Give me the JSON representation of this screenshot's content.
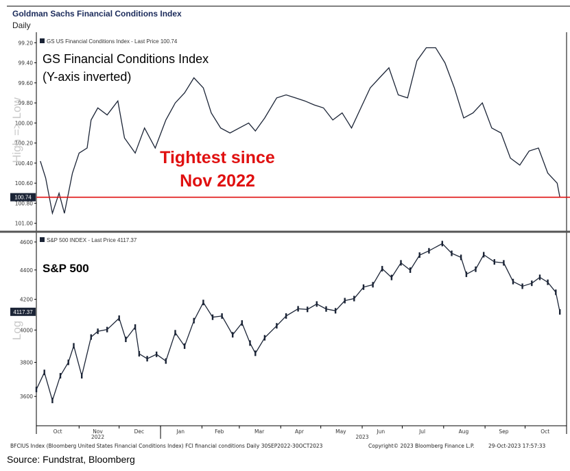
{
  "header": {
    "title": "Goldman Sachs Financial Conditions Index",
    "subtitle": "Daily"
  },
  "footer": {
    "left": "BFCIUS Index (Bloomberg United States Financial Conditions Index) FCI financial conditions  Daily 30SEP2022-30OCT2023",
    "middle": "Copyright© 2023 Bloomberg Finance L.P.",
    "right": "29-Oct-2023 17:57:33"
  },
  "source": "Source: Fundstrat, Bloomberg",
  "colors": {
    "line": "#1b2436",
    "accent": "#e01010",
    "frame": "#000000"
  },
  "chart_data": [
    {
      "type": "line",
      "legend": "GS US Financial Conditions Index - Last Price 100.74",
      "title": "GS Financial Conditions Index",
      "subtitle": "(Y-axis inverted)",
      "ylabel": "High => Low",
      "annotation": [
        "Tightest since",
        "Nov 2022"
      ],
      "last_value_label": "100.74",
      "last_value": 100.74,
      "y_inverted": true,
      "ylim": [
        99.15,
        101.05
      ],
      "yticks": [
        "99.20",
        "99.40",
        "99.60",
        "99.80",
        "100.00",
        "100.20",
        "100.40",
        "100.60",
        "100.80",
        "101.00"
      ],
      "ytick_values": [
        99.2,
        99.4,
        99.6,
        99.8,
        100.0,
        100.2,
        100.4,
        100.6,
        100.8,
        101.0
      ],
      "xlim": [
        "2022-09-30",
        "2023-10-30"
      ],
      "series": [
        {
          "x": [
            "2022-10-03",
            "2022-10-07",
            "2022-10-12",
            "2022-10-17",
            "2022-10-21",
            "2022-10-27",
            "2022-11-01",
            "2022-11-07",
            "2022-11-10",
            "2022-11-15",
            "2022-11-22",
            "2022-11-30",
            "2022-12-05",
            "2022-12-13",
            "2022-12-20",
            "2022-12-28",
            "2023-01-05",
            "2023-01-12",
            "2023-01-19",
            "2023-01-26",
            "2023-02-02",
            "2023-02-08",
            "2023-02-15",
            "2023-02-22",
            "2023-03-01",
            "2023-03-08",
            "2023-03-13",
            "2023-03-20",
            "2023-03-29",
            "2023-04-05",
            "2023-04-12",
            "2023-04-19",
            "2023-04-26",
            "2023-05-03",
            "2023-05-10",
            "2023-05-17",
            "2023-05-24",
            "2023-05-31",
            "2023-06-07",
            "2023-06-14",
            "2023-06-21",
            "2023-06-28",
            "2023-07-05",
            "2023-07-12",
            "2023-07-19",
            "2023-07-26",
            "2023-08-02",
            "2023-08-09",
            "2023-08-16",
            "2023-08-23",
            "2023-08-30",
            "2023-09-06",
            "2023-09-13",
            "2023-09-20",
            "2023-09-27",
            "2023-10-04",
            "2023-10-11",
            "2023-10-18",
            "2023-10-25",
            "2023-10-27"
          ],
          "values": [
            100.38,
            100.55,
            100.9,
            100.7,
            100.9,
            100.5,
            100.3,
            100.25,
            99.97,
            99.85,
            99.92,
            99.78,
            100.15,
            100.3,
            100.05,
            100.25,
            99.97,
            99.8,
            99.7,
            99.55,
            99.65,
            99.9,
            100.05,
            100.1,
            100.05,
            100.0,
            100.08,
            99.95,
            99.75,
            99.72,
            99.75,
            99.78,
            99.82,
            99.85,
            99.97,
            99.9,
            100.05,
            99.85,
            99.65,
            99.55,
            99.45,
            99.72,
            99.75,
            99.38,
            99.25,
            99.25,
            99.4,
            99.65,
            99.95,
            99.9,
            99.8,
            100.05,
            100.1,
            100.35,
            100.42,
            100.28,
            100.25,
            100.5,
            100.6,
            100.74
          ]
        }
      ]
    },
    {
      "type": "line",
      "legend": "S&P 500 INDEX - Last Price 4117.37",
      "title": "S&P 500",
      "ylabel": "Log",
      "last_value_label": "4117.37",
      "last_value": 4117.37,
      "ylim": [
        3440,
        4650
      ],
      "yticks": [
        "3600",
        "3800",
        "4000",
        "4200",
        "4400",
        "4600"
      ],
      "ytick_values": [
        3600,
        3800,
        4000,
        4200,
        4400,
        4600
      ],
      "xlim": [
        "2022-09-30",
        "2023-10-30"
      ],
      "series": [
        {
          "x": [
            "2022-09-30",
            "2022-10-06",
            "2022-10-12",
            "2022-10-18",
            "2022-10-24",
            "2022-10-28",
            "2022-11-03",
            "2022-11-10",
            "2022-11-15",
            "2022-11-22",
            "2022-12-01",
            "2022-12-06",
            "2022-12-13",
            "2022-12-16",
            "2022-12-22",
            "2022-12-29",
            "2023-01-05",
            "2023-01-12",
            "2023-01-19",
            "2023-01-26",
            "2023-02-02",
            "2023-02-09",
            "2023-02-16",
            "2023-02-24",
            "2023-03-03",
            "2023-03-09",
            "2023-03-13",
            "2023-03-20",
            "2023-03-29",
            "2023-04-05",
            "2023-04-14",
            "2023-04-21",
            "2023-04-28",
            "2023-05-05",
            "2023-05-12",
            "2023-05-19",
            "2023-05-26",
            "2023-06-02",
            "2023-06-09",
            "2023-06-16",
            "2023-06-23",
            "2023-06-30",
            "2023-07-07",
            "2023-07-14",
            "2023-07-21",
            "2023-07-31",
            "2023-08-07",
            "2023-08-14",
            "2023-08-18",
            "2023-08-25",
            "2023-08-31",
            "2023-09-08",
            "2023-09-15",
            "2023-09-22",
            "2023-09-29",
            "2023-10-06",
            "2023-10-12",
            "2023-10-18",
            "2023-10-24",
            "2023-10-27"
          ],
          "values": [
            3640,
            3740,
            3577,
            3720,
            3800,
            3901,
            3720,
            3956,
            3992,
            4003,
            4076,
            3941,
            4019,
            3852,
            3822,
            3849,
            3808,
            3983,
            3899,
            4060,
            4179,
            4082,
            4090,
            3970,
            4045,
            3918,
            3855,
            3951,
            4027,
            4090,
            4137,
            4133,
            4169,
            4136,
            4124,
            4191,
            4205,
            4282,
            4298,
            4409,
            4348,
            4450,
            4399,
            4505,
            4536,
            4588,
            4518,
            4489,
            4370,
            4405,
            4508,
            4457,
            4450,
            4320,
            4288,
            4308,
            4349,
            4315,
            4247,
            4117
          ]
        }
      ]
    }
  ],
  "xaxis": {
    "months": [
      "Oct",
      "Nov",
      "Dec",
      "Jan",
      "Feb",
      "Mar",
      "Apr",
      "May",
      "Jun",
      "Jul",
      "Aug",
      "Sep",
      "Oct"
    ],
    "years": [
      "2022",
      "2023"
    ]
  }
}
